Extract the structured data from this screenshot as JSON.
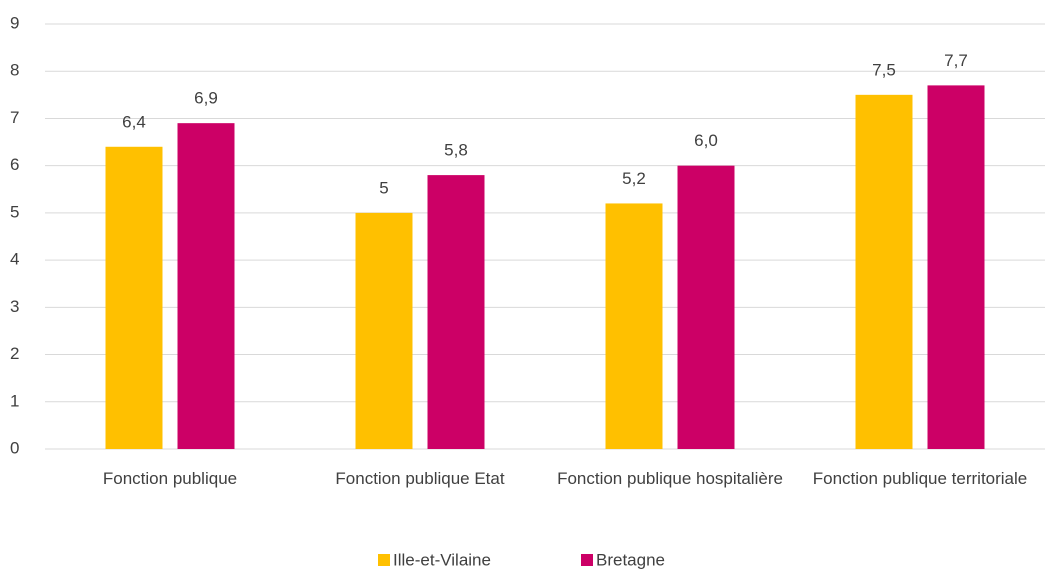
{
  "chart_data": {
    "type": "bar",
    "categories": [
      "Fonction publique",
      "Fonction publique Etat",
      "Fonction publique hospitalière",
      "Fonction publique territoriale"
    ],
    "series": [
      {
        "name": "Ille-et-Vilaine",
        "color": "#FFC000",
        "values": [
          6.4,
          5,
          5.2,
          7.5
        ],
        "value_labels": [
          "6,4",
          "5",
          "5,2",
          "7,5"
        ]
      },
      {
        "name": "Bretagne",
        "color": "#CC0066",
        "values": [
          6.9,
          5.8,
          6.0,
          7.7
        ],
        "value_labels": [
          "6,9",
          "5,8",
          "6,0",
          "7,7"
        ]
      }
    ],
    "ylim": [
      0,
      9
    ],
    "yticks": [
      0,
      1,
      2,
      3,
      4,
      5,
      6,
      7,
      8,
      9
    ],
    "grid": true,
    "legend": "bottom"
  }
}
